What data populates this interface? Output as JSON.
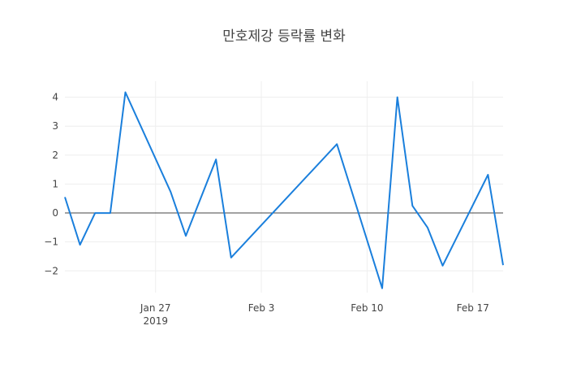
{
  "chart_data": {
    "type": "line",
    "title": "만호제강 등락률 변화",
    "x": [
      "2019-01-21",
      "2019-01-22",
      "2019-01-23",
      "2019-01-24",
      "2019-01-25",
      "2019-01-28",
      "2019-01-29",
      "2019-01-31",
      "2019-02-01",
      "2019-02-08",
      "2019-02-11",
      "2019-02-12",
      "2019-02-13",
      "2019-02-14",
      "2019-02-15",
      "2019-02-18",
      "2019-02-19"
    ],
    "series": [
      {
        "color": "#1a7fdc",
        "values": [
          0.55,
          -1.1,
          0,
          0,
          4.17,
          0.73,
          -0.79,
          1.85,
          -1.54,
          2.38,
          -2.6,
          4.0,
          0.25,
          -0.5,
          -1.82,
          1.32,
          -1.8
        ]
      }
    ],
    "xlim": [
      "2019-01-21",
      "2019-02-19"
    ],
    "xticks": [
      {
        "value": "2019-01-27",
        "label": "Jan 27\n2019"
      },
      {
        "value": "2019-02-03",
        "label": "Feb 3"
      },
      {
        "value": "2019-02-10",
        "label": "Feb 10"
      },
      {
        "value": "2019-02-17",
        "label": "Feb 17"
      }
    ],
    "ylim": [
      -2.75,
      4.55
    ],
    "yticks": [
      {
        "value": -2,
        "label": "−2"
      },
      {
        "value": -1,
        "label": "−1"
      },
      0,
      1,
      2,
      3,
      4
    ],
    "grid": true
  }
}
